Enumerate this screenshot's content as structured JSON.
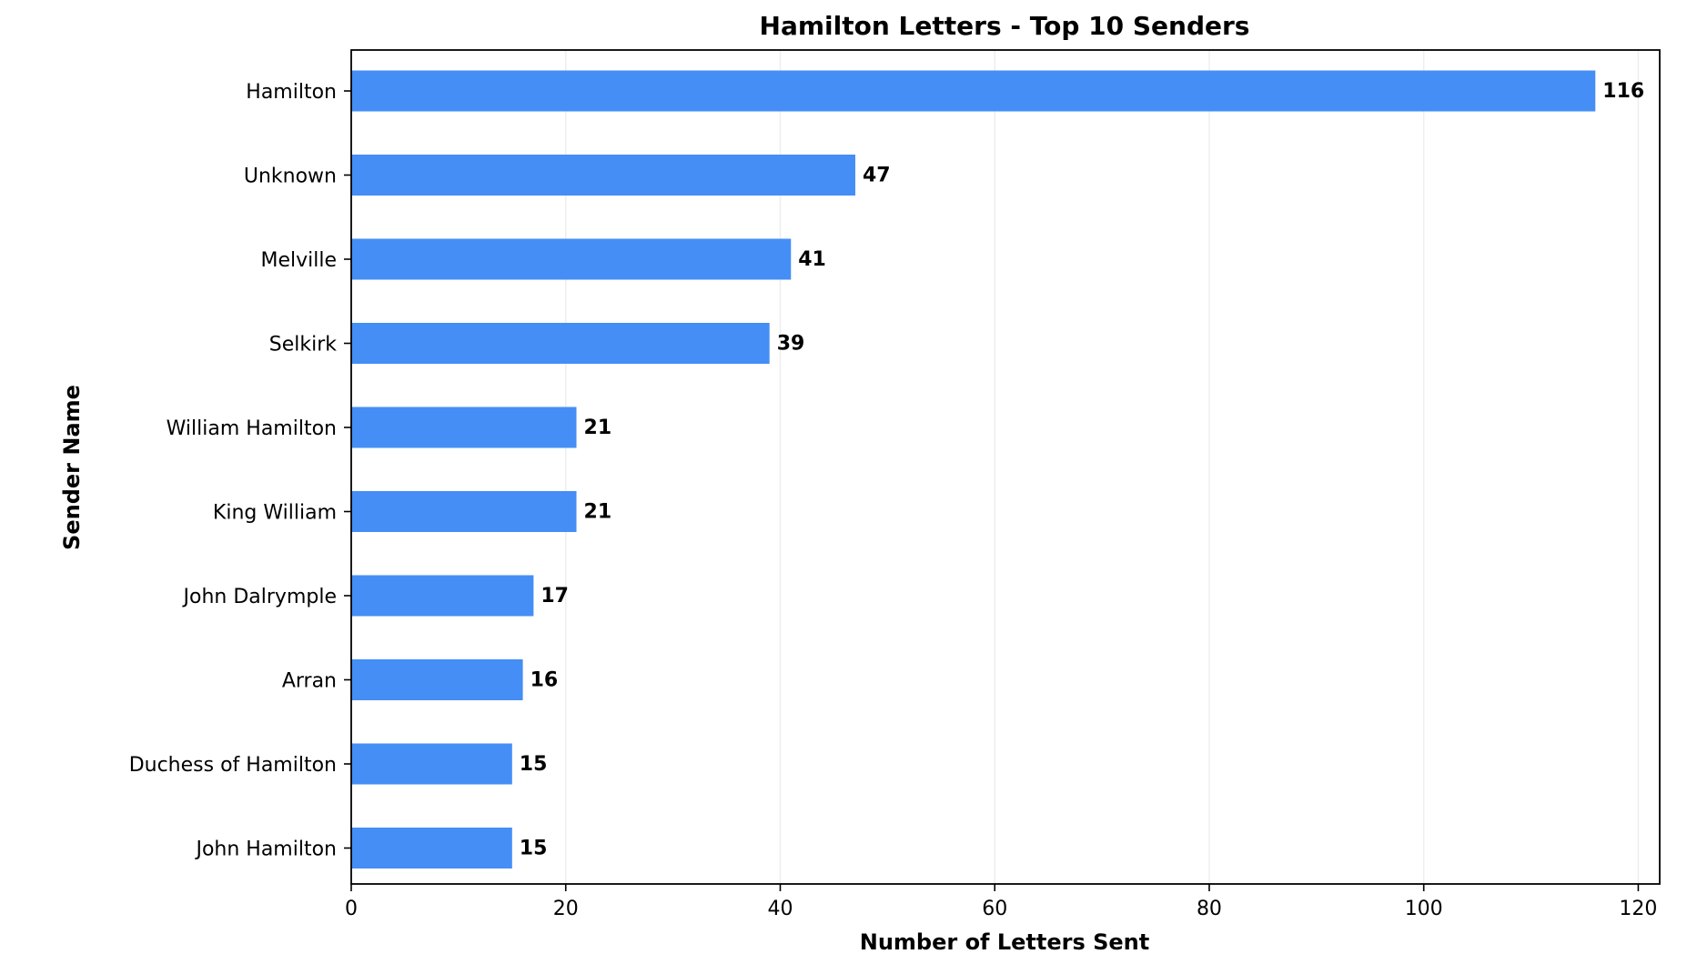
{
  "chart_data": {
    "type": "bar",
    "orientation": "horizontal",
    "title": "Hamilton Letters - Top 10 Senders",
    "xlabel": "Number of Letters Sent",
    "ylabel": "Sender Name",
    "categories": [
      "Hamilton",
      "Unknown",
      "Melville",
      "Selkirk",
      "William Hamilton",
      "King William",
      "John Dalrymple",
      "Arran",
      "Duchess of Hamilton",
      "John Hamilton"
    ],
    "values": [
      116,
      47,
      41,
      39,
      21,
      21,
      17,
      16,
      15,
      15
    ],
    "value_labels": [
      "116",
      "47",
      "41",
      "39",
      "21",
      "21",
      "17",
      "16",
      "15",
      "15"
    ],
    "xlim": [
      0,
      122
    ],
    "xticks": [
      0,
      20,
      40,
      60,
      80,
      100,
      120
    ],
    "xtick_labels": [
      "0",
      "20",
      "40",
      "60",
      "80",
      "100",
      "120"
    ],
    "grid": "x",
    "bar_color": "#448EF6",
    "grid_color": "#EEEEEE"
  }
}
